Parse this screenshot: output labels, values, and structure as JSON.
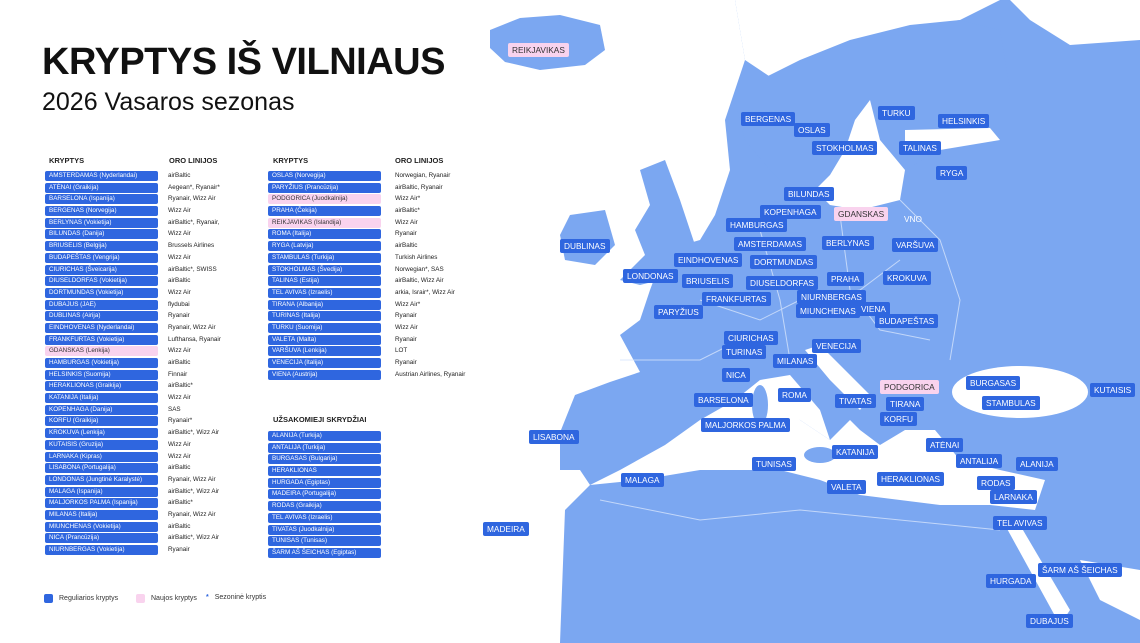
{
  "title": "KRYPTYS IŠ VILNIAUS",
  "subtitle": "2026 Vasaros sezonas",
  "colors": {
    "regular": "#2f66df",
    "new": "#f9d3ee",
    "land": "#7ba7f1",
    "sea": "#ffffff"
  },
  "headers": {
    "kryptys": "KRYPTYS",
    "oro_linijos": "ORO LINIJOS",
    "charter": "UŽSAKOMIEJI SKRYDŽIAI"
  },
  "left_table": [
    {
      "dest": "AMSTERDAMAS (Nyderlandai)",
      "air": "airBaltic"
    },
    {
      "dest": "ATĖNAI (Graikija)",
      "air": "Aegean*, Ryanair*"
    },
    {
      "dest": "BARSELONA (Ispanija)",
      "air": "Ryanair, Wizz Air"
    },
    {
      "dest": "BERGENAS (Norvegija)",
      "air": "Wizz Air"
    },
    {
      "dest": "BERLYNAS (Vokietija)",
      "air": "airBaltic*, Ryanair,"
    },
    {
      "dest": "BILUNDAS (Danija)",
      "air": "Wizz Air"
    },
    {
      "dest": "BRIUSELIS (Belgija)",
      "air": "Brussels Airlines"
    },
    {
      "dest": "BUDAPEŠTAS (Vengrija)",
      "air": "Wizz Air"
    },
    {
      "dest": "CIURICHAS (Šveicarija)",
      "air": "airBaltic*, SWISS"
    },
    {
      "dest": "DIUSELDORFAS (Vokietija)",
      "air": "airBaltic"
    },
    {
      "dest": "DORTMUNDAS (Vokietija)",
      "air": "Wizz Air"
    },
    {
      "dest": "DUBAJUS (JAE)",
      "air": "flydubai"
    },
    {
      "dest": "DUBLINAS (Airija)",
      "air": "Ryanair"
    },
    {
      "dest": "EINDHOVENAS (Nyderlandai)",
      "air": "Ryanair, Wizz Air"
    },
    {
      "dest": "FRANKFURTAS (Vokietija)",
      "air": "Lufthansa, Ryanair"
    },
    {
      "dest": "GDANSKAS (Lenkija)",
      "air": "Wizz Air",
      "new": true
    },
    {
      "dest": "HAMBURGAS (Vokietija)",
      "air": "airBaltic"
    },
    {
      "dest": "HELSINKIS (Suomija)",
      "air": "Finnair"
    },
    {
      "dest": "HERAKLIONAS (Graikija)",
      "air": "airBaltic*"
    },
    {
      "dest": "KATANIJA (Italija)",
      "air": "Wizz Air"
    },
    {
      "dest": "KOPENHAGA (Danija)",
      "air": "SAS"
    },
    {
      "dest": "KORFU (Graikija)",
      "air": "Ryanair*"
    },
    {
      "dest": "KROKUVA (Lenkija)",
      "air": "airBaltic*, Wizz Air"
    },
    {
      "dest": "KUTAISIS (Gruzija)",
      "air": "Wizz Air"
    },
    {
      "dest": "LARNAKA (Kipras)",
      "air": "Wizz Air"
    },
    {
      "dest": "LISABONA (Portugalija)",
      "air": "airBaltic"
    },
    {
      "dest": "LONDONAS (Jungtinė Karalystė)",
      "air": "Ryanair, Wizz Air"
    },
    {
      "dest": "MALAGA (Ispanija)",
      "air": "airBaltic*, Wizz Air"
    },
    {
      "dest": "MALJORKOS PALMA (Ispanija)",
      "air": "airBaltic*"
    },
    {
      "dest": "MILANAS (Italija)",
      "air": "Ryanair, Wizz Air"
    },
    {
      "dest": "MIUNCHENAS (Vokietija)",
      "air": "airBaltic"
    },
    {
      "dest": "NICA (Prancūzija)",
      "air": "airBaltic*, Wizz Air"
    },
    {
      "dest": "NIURNBERGAS (Vokietija)",
      "air": "Ryanair"
    }
  ],
  "right_table": [
    {
      "dest": "OSLAS (Norvegija)",
      "air": "Norwegian, Ryanair"
    },
    {
      "dest": "PARYŽIUS (Prancūzija)",
      "air": "airBaltic, Ryanair"
    },
    {
      "dest": "PODGORICA (Juodkalnija)",
      "air": "Wizz Air*",
      "new": true
    },
    {
      "dest": "PRAHA (Čekija)",
      "air": "airBaltic*"
    },
    {
      "dest": "REIKJAVIKAS (Islandija)",
      "air": "Wizz Air",
      "new": true
    },
    {
      "dest": "ROMA (Italija)",
      "air": "Ryanair"
    },
    {
      "dest": "RYGA (Latvija)",
      "air": "airBaltic"
    },
    {
      "dest": "STAMBULAS (Turkija)",
      "air": "Turkish Airlines"
    },
    {
      "dest": "STOKHOLMAS (Švedija)",
      "air": "Norwegian*, SAS"
    },
    {
      "dest": "TALINAS (Estija)",
      "air": "airBaltic, Wizz Air"
    },
    {
      "dest": "TEL AVIVAS (Izraelis)",
      "air": "arkia, Israir*, Wizz Air"
    },
    {
      "dest": "TIRANA (Albanija)",
      "air": "Wizz Air*"
    },
    {
      "dest": "TURINAS (Italija)",
      "air": "Ryanair"
    },
    {
      "dest": "TURKU (Suomija)",
      "air": "Wizz Air"
    },
    {
      "dest": "VALETA (Malta)",
      "air": "Ryanair"
    },
    {
      "dest": "VARŠUVA (Lenkija)",
      "air": "LOT"
    },
    {
      "dest": "VENECIJA (Italija)",
      "air": "Ryanair"
    },
    {
      "dest": "VIENA (Austrija)",
      "air": "Austrian Airlines, Ryanair"
    }
  ],
  "charter_table": [
    "ALANIJA (Turkija)",
    "ANTALIJA (Turkija)",
    "BURGASAS (Bulgarija)",
    "HERAKLIONAS",
    "HURGADA (Egiptas)",
    "MADEIRA (Portugalija)",
    "RODAS (Graikija)",
    "TEL AVIVAS (Izraelis)",
    "TIVATAS (Juodkalnija)",
    "TUNISAS (Tunisas)",
    "ŠARM AŠ ŠEICHAS (Egiptas)"
  ],
  "legend": {
    "regular": "Reguliarios kryptys",
    "new": "Naujos kryptys",
    "seasonal_mark": "*",
    "seasonal": "Sezoninė kryptis"
  },
  "map_labels": [
    {
      "t": "REIKJAVIKAS",
      "new": true
    },
    {
      "t": "BERGENAS"
    },
    {
      "t": "OSLAS"
    },
    {
      "t": "TURKU"
    },
    {
      "t": "HELSINKIS"
    },
    {
      "t": "STOKHOLMAS"
    },
    {
      "t": "TALINAS"
    },
    {
      "t": "RYGA"
    },
    {
      "t": "BILUNDAS"
    },
    {
      "t": "KOPENHAGA"
    },
    {
      "t": "GDANSKAS",
      "new": true
    },
    {
      "t": "VNO",
      "home": true
    },
    {
      "t": "HAMBURGAS"
    },
    {
      "t": "DUBLINAS"
    },
    {
      "t": "AMSTERDAMAS"
    },
    {
      "t": "BERLYNAS"
    },
    {
      "t": "VARŠUVA"
    },
    {
      "t": "EINDHOVENAS"
    },
    {
      "t": "DORTMUNDAS"
    },
    {
      "t": "LONDONAS"
    },
    {
      "t": "BRIUSELIS"
    },
    {
      "t": "DIUSELDORFAS"
    },
    {
      "t": "PRAHA"
    },
    {
      "t": "KROKUVA"
    },
    {
      "t": "FRANKFURTAS"
    },
    {
      "t": "NIURNBERGAS"
    },
    {
      "t": "PARYŽIUS"
    },
    {
      "t": "MIUNCHENAS"
    },
    {
      "t": "VIENA"
    },
    {
      "t": "BUDAPEŠTAS"
    },
    {
      "t": "CIURICHAS"
    },
    {
      "t": "TURINAS"
    },
    {
      "t": "VENECIJA"
    },
    {
      "t": "MILANAS"
    },
    {
      "t": "NICA"
    },
    {
      "t": "PODGORICA",
      "new": true
    },
    {
      "t": "BURGASAS"
    },
    {
      "t": "KUTAISIS"
    },
    {
      "t": "ROMA"
    },
    {
      "t": "BARSELONA"
    },
    {
      "t": "TIVATAS"
    },
    {
      "t": "TIRANA"
    },
    {
      "t": "STAMBULAS"
    },
    {
      "t": "KORFU"
    },
    {
      "t": "MALJORKOS PALMA"
    },
    {
      "t": "LISABONA"
    },
    {
      "t": "ATĖNAI"
    },
    {
      "t": "KATANIJA"
    },
    {
      "t": "TUNISAS"
    },
    {
      "t": "ANTALIJA"
    },
    {
      "t": "ALANIJA"
    },
    {
      "t": "MALAGA"
    },
    {
      "t": "HERAKLIONAS"
    },
    {
      "t": "VALETA"
    },
    {
      "t": "RODAS"
    },
    {
      "t": "LARNAKA"
    },
    {
      "t": "TEL AVIVAS"
    },
    {
      "t": "MADEIRA"
    },
    {
      "t": "ŠARM AŠ ŠEICHAS"
    },
    {
      "t": "HURGADA"
    },
    {
      "t": "DUBAJUS"
    }
  ]
}
